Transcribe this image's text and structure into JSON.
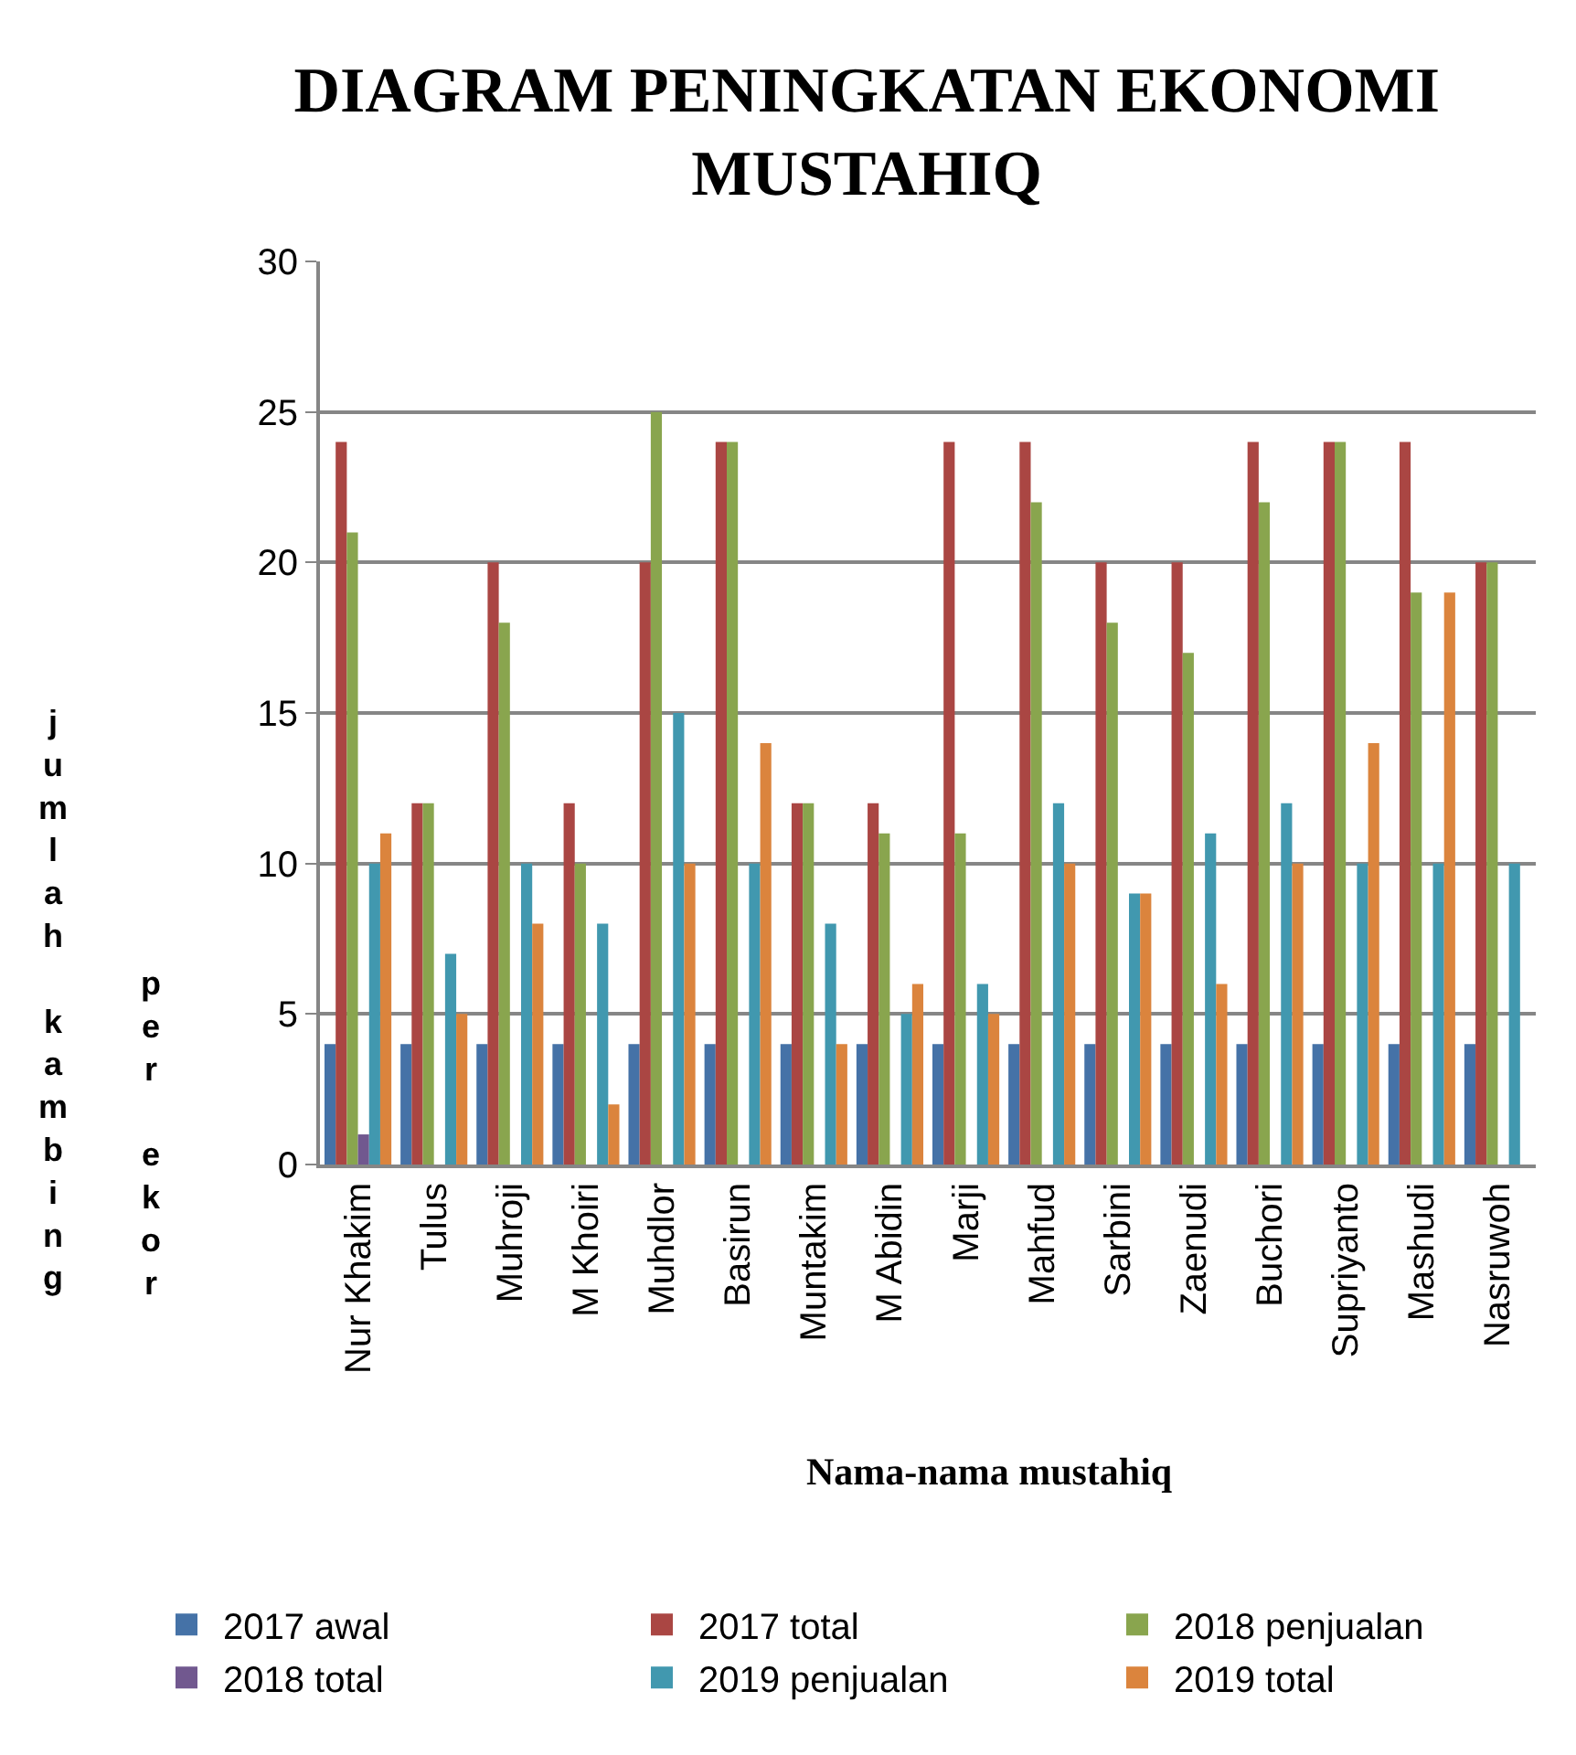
{
  "chart_data": {
    "type": "bar",
    "title": "DIAGRAM PENINGKATAN EKONOMI MUSTAHIQ",
    "xlabel": "Nama-nama mustahiq",
    "ylabel": "jumlah kambing",
    "annotations": [
      "per ekor"
    ],
    "categories": [
      "Nur Khakim",
      "Tulus",
      "Muhroji",
      "M Khoiri",
      "Muhdlor",
      "Basirun",
      "Muntakim",
      "M Abidin",
      "Marji",
      "Mahfud",
      "Sarbini",
      "Zaenudi",
      "Buchori",
      "Supriyanto",
      "Mashudi",
      "Nasruwoh"
    ],
    "series": [
      {
        "name": "2017 awal",
        "color": "#4572a7",
        "values": [
          4,
          4,
          4,
          4,
          4,
          4,
          4,
          4,
          4,
          4,
          4,
          4,
          4,
          4,
          4,
          4
        ]
      },
      {
        "name": "2017 total",
        "color": "#aa4643",
        "values": [
          24,
          12,
          20,
          12,
          20,
          24,
          12,
          12,
          24,
          24,
          20,
          20,
          24,
          24,
          24,
          20
        ]
      },
      {
        "name": "2018 penjualan",
        "color": "#89a54e",
        "values": [
          21,
          12,
          18,
          10,
          25,
          24,
          12,
          11,
          11,
          22,
          18,
          17,
          22,
          24,
          19,
          20
        ]
      },
      {
        "name": "2018 total",
        "color": "#71588f",
        "values": [
          1,
          null,
          null,
          null,
          null,
          null,
          null,
          null,
          null,
          null,
          null,
          null,
          null,
          null,
          null,
          null
        ]
      },
      {
        "name": "2019 penjualan",
        "color": "#4198af",
        "values": [
          10,
          7,
          10,
          8,
          15,
          10,
          8,
          5,
          6,
          12,
          9,
          11,
          12,
          10,
          10,
          10
        ]
      },
      {
        "name": "2019 total",
        "color": "#db843d",
        "values": [
          11,
          5,
          8,
          2,
          10,
          14,
          4,
          6,
          5,
          10,
          9,
          6,
          10,
          14,
          19,
          null
        ]
      }
    ],
    "ylim": [
      0,
      30
    ],
    "yticks": [
      0,
      5,
      10,
      15,
      20,
      25,
      30
    ],
    "grid": "y",
    "legend": "bottom"
  }
}
